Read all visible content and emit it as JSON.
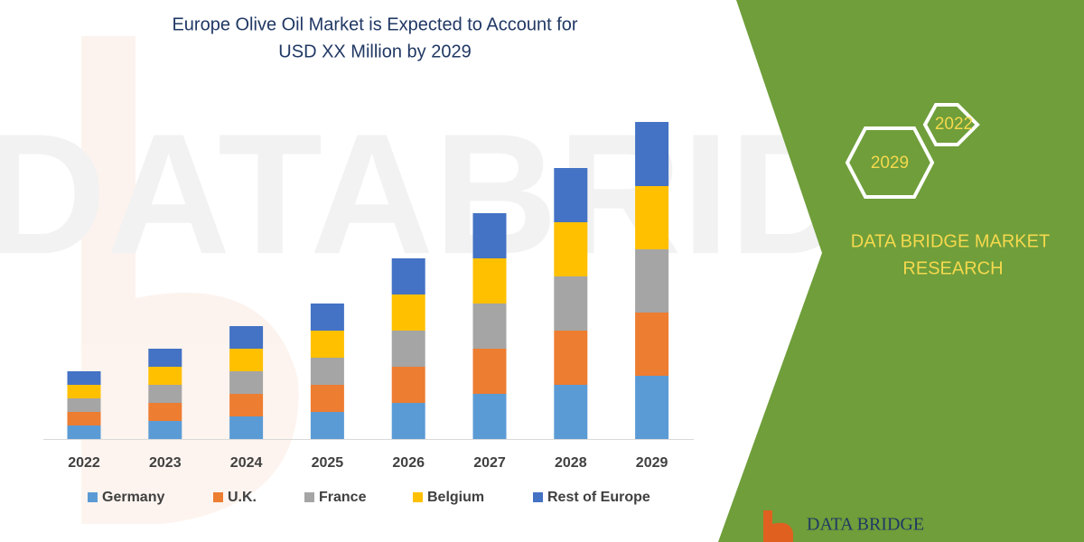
{
  "chart_data": {
    "type": "stacked_bar",
    "title": [
      "Europe Olive Oil Market is Expected to Account for",
      "USD XX Million by 2029"
    ],
    "categories": [
      "2022",
      "2023",
      "2024",
      "2025",
      "2026",
      "2027",
      "2028",
      "2029"
    ],
    "series": [
      {
        "name": "Germany",
        "color": "#5b9bd5",
        "values": [
          15,
          20,
          25,
          30,
          40,
          50,
          60,
          70
        ]
      },
      {
        "name": "U.K.",
        "color": "#ed7d31",
        "values": [
          15,
          20,
          25,
          30,
          40,
          50,
          60,
          70
        ]
      },
      {
        "name": "France",
        "color": "#a5a5a5",
        "values": [
          15,
          20,
          25,
          30,
          40,
          50,
          60,
          70
        ]
      },
      {
        "name": "Belgium",
        "color": "#ffc000",
        "values": [
          15,
          20,
          25,
          30,
          40,
          50,
          60,
          70
        ]
      },
      {
        "name": "Rest of Europe",
        "color": "#4472c4",
        "values": [
          15,
          20,
          25,
          30,
          40,
          50,
          60,
          71
        ]
      }
    ]
  },
  "panel": {
    "hex_small": "2022",
    "hex_large": "2029",
    "brand": [
      "DATA BRIDGE MARKET",
      "RESEARCH"
    ],
    "logo": "DATA BRIDGE"
  }
}
